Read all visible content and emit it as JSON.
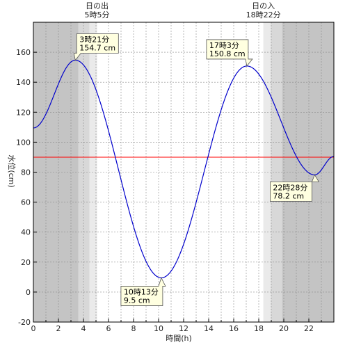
{
  "chart_data": {
    "type": "line",
    "title": "",
    "xlabel": "時間(h)",
    "ylabel": "水位(cm)",
    "xlim": [
      0,
      24
    ],
    "ylim": [
      -20,
      180
    ],
    "x_ticks": [
      0,
      2,
      4,
      6,
      8,
      10,
      12,
      14,
      16,
      18,
      20,
      22
    ],
    "y_ticks": [
      -20,
      0,
      20,
      40,
      60,
      80,
      100,
      120,
      140,
      160
    ],
    "grid": true,
    "series": [
      {
        "color": "#0000cc",
        "points": [
          [
            0,
            109.5
          ],
          [
            3.35,
            154.7
          ],
          [
            10.217,
            9.5
          ],
          [
            17.05,
            150.8
          ],
          [
            22.467,
            78.2
          ],
          [
            24,
            90.5
          ]
        ]
      }
    ],
    "reference_line": {
      "y": 90,
      "color": "#ff0000"
    },
    "sunrise": {
      "title": "日の出",
      "time": "5時5分",
      "hour": 5.083
    },
    "sunset": {
      "title": "日の入",
      "time": "18時22分",
      "hour": 18.367
    },
    "annotations": [
      {
        "time": "3時21分",
        "level": "154.7 cm",
        "x": 3.35,
        "y": 154.7
      },
      {
        "time": "10時13分",
        "level": "9.5 cm",
        "x": 10.217,
        "y": 9.5
      },
      {
        "time": "17時3分",
        "level": "150.8 cm",
        "x": 17.05,
        "y": 150.8
      },
      {
        "time": "22時28分",
        "level": "78.2 cm",
        "x": 22.467,
        "y": 78.2
      }
    ],
    "colors": {
      "night": "#c4c4c4",
      "twilight": "#d8d8d8",
      "dawn": "#eaeaea",
      "day": "#ffffff",
      "annotation_bg": "#ffffe0",
      "annotation_border": "#555555",
      "grid": "#888888"
    }
  }
}
